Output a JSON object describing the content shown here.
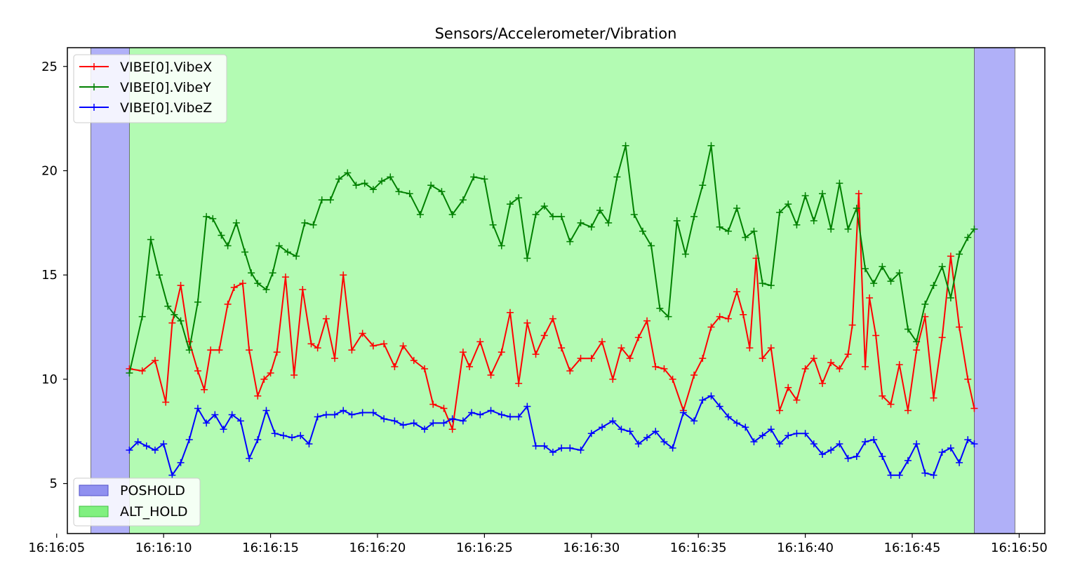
{
  "chart_data": {
    "type": "line",
    "title": "Sensors/Accelerometer/Vibration",
    "xlabel": "",
    "ylabel": "",
    "x_unit": "seconds after 16:16:00",
    "xlim": [
      5.5,
      51.2
    ],
    "ylim": [
      2.6,
      25.9
    ],
    "x_ticks": [
      5,
      10,
      15,
      20,
      25,
      30,
      35,
      40,
      45,
      50
    ],
    "x_tick_labels": [
      "16:16:05",
      "16:16:10",
      "16:16:15",
      "16:16:20",
      "16:16:25",
      "16:16:30",
      "16:16:35",
      "16:16:40",
      "16:16:45",
      "16:16:50"
    ],
    "y_ticks": [
      5,
      10,
      15,
      20,
      25
    ],
    "y_tick_labels": [
      "5",
      "10",
      "15",
      "20",
      "25"
    ],
    "grid": false,
    "mode_legend_position": "lower-left",
    "series_legend_position": "upper-left",
    "mode_regions": [
      {
        "name": "POSHOLD",
        "x0": 6.6,
        "x1": 8.4,
        "color": "#b0b0f8"
      },
      {
        "name": "ALT_HOLD",
        "x0": 8.4,
        "x1": 47.9,
        "color": "#b3fbb3"
      },
      {
        "name": "POSHOLD",
        "x0": 47.9,
        "x1": 49.8,
        "color": "#b0b0f8"
      }
    ],
    "mode_legend": [
      {
        "name": "POSHOLD",
        "color": "#9090f0",
        "edge": "#5050c8"
      },
      {
        "name": "ALT_HOLD",
        "color": "#80f080",
        "edge": "#40c040"
      }
    ],
    "series": [
      {
        "name": "VIBE[0].VibeX",
        "color": "#ff0000",
        "x": [
          8.4,
          9.0,
          9.6,
          10.1,
          10.4,
          10.8,
          11.2,
          11.6,
          11.9,
          12.2,
          12.6,
          13.0,
          13.3,
          13.7,
          14.0,
          14.4,
          14.7,
          15.0,
          15.3,
          15.7,
          16.1,
          16.5,
          16.9,
          17.2,
          17.6,
          18.0,
          18.4,
          18.8,
          19.3,
          19.8,
          20.3,
          20.8,
          21.2,
          21.7,
          22.2,
          22.6,
          23.1,
          23.5,
          24.0,
          24.3,
          24.8,
          25.3,
          25.8,
          26.2,
          26.6,
          27.0,
          27.4,
          27.8,
          28.2,
          28.6,
          29.0,
          29.5,
          30.0,
          30.5,
          31.0,
          31.4,
          31.8,
          32.2,
          32.6,
          33.0,
          33.4,
          33.8,
          34.3,
          34.8,
          35.2,
          35.6,
          36.0,
          36.4,
          36.8,
          37.1,
          37.4,
          37.7,
          38.0,
          38.4,
          38.8,
          39.2,
          39.6,
          40.0,
          40.4,
          40.8,
          41.2,
          41.6,
          42.0,
          42.2,
          42.5,
          42.8,
          43.0,
          43.3,
          43.6,
          44.0,
          44.4,
          44.8,
          45.2,
          45.6,
          46.0,
          46.4,
          46.8,
          47.2,
          47.6,
          47.9
        ],
        "values": [
          10.5,
          10.4,
          10.9,
          8.9,
          12.7,
          14.5,
          11.8,
          10.4,
          9.5,
          11.4,
          11.4,
          13.6,
          14.4,
          14.6,
          11.4,
          9.2,
          10.0,
          10.3,
          11.3,
          14.9,
          10.2,
          14.3,
          11.7,
          11.5,
          12.9,
          11.0,
          15.0,
          11.4,
          12.2,
          11.6,
          11.7,
          10.6,
          11.6,
          10.9,
          10.5,
          8.8,
          8.6,
          7.6,
          11.3,
          10.6,
          11.8,
          10.2,
          11.3,
          13.2,
          9.8,
          12.7,
          11.2,
          12.1,
          12.9,
          11.5,
          10.4,
          11.0,
          11.0,
          11.8,
          10.0,
          11.5,
          11.0,
          12.0,
          12.8,
          10.6,
          10.5,
          10.0,
          8.5,
          10.2,
          11.0,
          12.5,
          13.0,
          12.9,
          14.2,
          13.1,
          11.5,
          15.8,
          11.0,
          11.5,
          8.5,
          9.6,
          9.0,
          10.5,
          11.0,
          9.8,
          10.8,
          10.5,
          11.2,
          12.6,
          18.9,
          10.6,
          13.9,
          12.1,
          9.2,
          8.8,
          10.7,
          8.5,
          11.4,
          13.0,
          9.1,
          12.0,
          15.9,
          12.5,
          10.0,
          8.6
        ]
      },
      {
        "name": "VIBE[0].VibeY",
        "color": "#008000",
        "x": [
          8.4,
          9.0,
          9.4,
          9.8,
          10.2,
          10.5,
          10.8,
          11.2,
          11.6,
          12.0,
          12.3,
          12.7,
          13.0,
          13.4,
          13.8,
          14.1,
          14.4,
          14.8,
          15.1,
          15.4,
          15.8,
          16.2,
          16.6,
          17.0,
          17.4,
          17.8,
          18.2,
          18.6,
          19.0,
          19.4,
          19.8,
          20.2,
          20.6,
          21.0,
          21.5,
          22.0,
          22.5,
          23.0,
          23.5,
          24.0,
          24.5,
          25.0,
          25.4,
          25.8,
          26.2,
          26.6,
          27.0,
          27.4,
          27.8,
          28.2,
          28.6,
          29.0,
          29.5,
          30.0,
          30.4,
          30.8,
          31.2,
          31.6,
          32.0,
          32.4,
          32.8,
          33.2,
          33.6,
          34.0,
          34.4,
          34.8,
          35.2,
          35.6,
          36.0,
          36.4,
          36.8,
          37.2,
          37.6,
          38.0,
          38.4,
          38.8,
          39.2,
          39.6,
          40.0,
          40.4,
          40.8,
          41.2,
          41.6,
          42.0,
          42.4,
          42.8,
          43.2,
          43.6,
          44.0,
          44.4,
          44.8,
          45.2,
          45.6,
          46.0,
          46.4,
          46.8,
          47.2,
          47.6,
          47.9
        ],
        "values": [
          10.3,
          13.0,
          16.7,
          15.0,
          13.5,
          13.1,
          12.8,
          11.4,
          13.7,
          17.8,
          17.7,
          16.9,
          16.4,
          17.5,
          16.1,
          15.1,
          14.6,
          14.3,
          15.1,
          16.4,
          16.1,
          15.9,
          17.5,
          17.4,
          18.6,
          18.6,
          19.6,
          19.9,
          19.3,
          19.4,
          19.1,
          19.5,
          19.7,
          19.0,
          18.9,
          17.9,
          19.3,
          19.0,
          17.9,
          18.6,
          19.7,
          19.6,
          17.4,
          16.4,
          18.4,
          18.7,
          15.8,
          17.9,
          18.3,
          17.8,
          17.8,
          16.6,
          17.5,
          17.3,
          18.1,
          17.5,
          19.7,
          21.2,
          17.9,
          17.1,
          16.4,
          13.4,
          13.0,
          17.6,
          16.0,
          17.8,
          19.3,
          21.2,
          17.3,
          17.1,
          18.2,
          16.8,
          17.1,
          14.6,
          14.5,
          18.0,
          18.4,
          17.4,
          18.8,
          17.6,
          18.9,
          17.2,
          19.4,
          17.2,
          18.2,
          15.3,
          14.6,
          15.4,
          14.7,
          15.1,
          12.4,
          11.8,
          13.6,
          14.5,
          15.4,
          13.9,
          16.0,
          16.8,
          17.2
        ]
      },
      {
        "name": "VIBE[0].VibeZ",
        "color": "#0000ff",
        "x": [
          8.4,
          8.8,
          9.2,
          9.6,
          10.0,
          10.4,
          10.8,
          11.2,
          11.6,
          12.0,
          12.4,
          12.8,
          13.2,
          13.6,
          14.0,
          14.4,
          14.8,
          15.2,
          15.6,
          16.0,
          16.4,
          16.8,
          17.2,
          17.6,
          18.0,
          18.4,
          18.8,
          19.3,
          19.8,
          20.3,
          20.8,
          21.2,
          21.7,
          22.2,
          22.6,
          23.1,
          23.5,
          24.0,
          24.4,
          24.8,
          25.3,
          25.8,
          26.2,
          26.6,
          27.0,
          27.4,
          27.8,
          28.2,
          28.6,
          29.0,
          29.5,
          30.0,
          30.5,
          31.0,
          31.4,
          31.8,
          32.2,
          32.6,
          33.0,
          33.4,
          33.8,
          34.3,
          34.8,
          35.2,
          35.6,
          36.0,
          36.4,
          36.8,
          37.2,
          37.6,
          38.0,
          38.4,
          38.8,
          39.2,
          39.6,
          40.0,
          40.4,
          40.8,
          41.2,
          41.6,
          42.0,
          42.4,
          42.8,
          43.2,
          43.6,
          44.0,
          44.4,
          44.8,
          45.2,
          45.6,
          46.0,
          46.4,
          46.8,
          47.2,
          47.6,
          47.9
        ],
        "values": [
          6.6,
          7.0,
          6.8,
          6.6,
          6.9,
          5.4,
          6.0,
          7.1,
          8.6,
          7.9,
          8.3,
          7.6,
          8.3,
          8.0,
          6.2,
          7.1,
          8.5,
          7.4,
          7.3,
          7.2,
          7.3,
          6.9,
          8.2,
          8.3,
          8.3,
          8.5,
          8.3,
          8.4,
          8.4,
          8.1,
          8.0,
          7.8,
          7.9,
          7.6,
          7.9,
          7.9,
          8.1,
          8.0,
          8.4,
          8.3,
          8.5,
          8.3,
          8.2,
          8.2,
          8.7,
          6.8,
          6.8,
          6.5,
          6.7,
          6.7,
          6.6,
          7.4,
          7.7,
          8.0,
          7.6,
          7.5,
          6.9,
          7.2,
          7.5,
          7.0,
          6.7,
          8.4,
          8.0,
          9.0,
          9.2,
          8.7,
          8.2,
          7.9,
          7.7,
          7.0,
          7.3,
          7.6,
          6.9,
          7.3,
          7.4,
          7.4,
          6.9,
          6.4,
          6.6,
          6.9,
          6.2,
          6.3,
          7.0,
          7.1,
          6.3,
          5.4,
          5.4,
          6.1,
          6.9,
          5.5,
          5.4,
          6.5,
          6.7,
          6.0,
          7.1,
          6.9
        ]
      }
    ]
  }
}
